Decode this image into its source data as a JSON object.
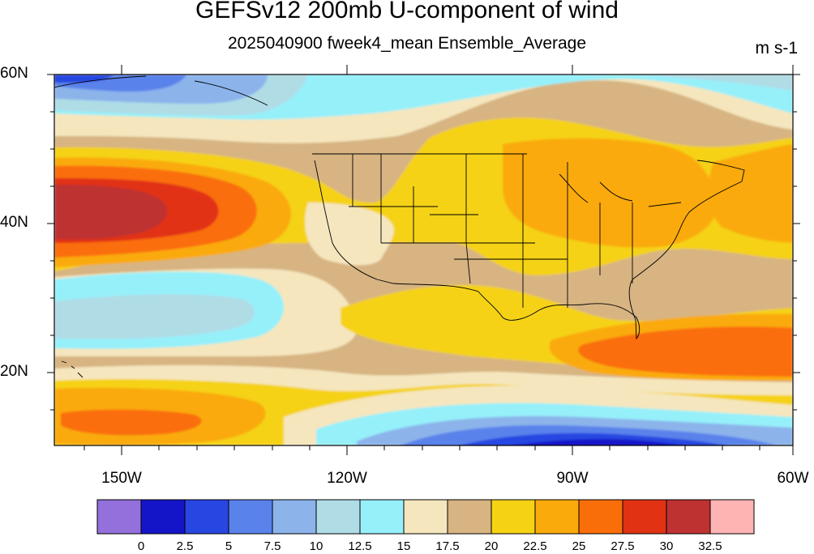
{
  "title": "GEFSv12 200mb U-component of wind",
  "subtitle": "2025040900 fweek4_mean Ensemble_Average",
  "units": "m s-1",
  "lat_labels": [
    "60N",
    "40N",
    "20N"
  ],
  "lon_labels": [
    "150W",
    "120W",
    "90W",
    "60W"
  ],
  "colorbar": {
    "colors": [
      "#9370db",
      "#1414c8",
      "#2846e1",
      "#5a82eb",
      "#8cb4eb",
      "#b0dce6",
      "#96f0fa",
      "#f5e6be",
      "#d7b482",
      "#f5d214",
      "#faaa0a",
      "#fa6e0a",
      "#e13214",
      "#be3232",
      "#ffb4b4"
    ],
    "labels": [
      "0",
      "2.5",
      "5",
      "7.5",
      "10",
      "12.5",
      "15",
      "17.5",
      "20",
      "22.5",
      "25",
      "27.5",
      "30",
      "32.5"
    ]
  }
}
